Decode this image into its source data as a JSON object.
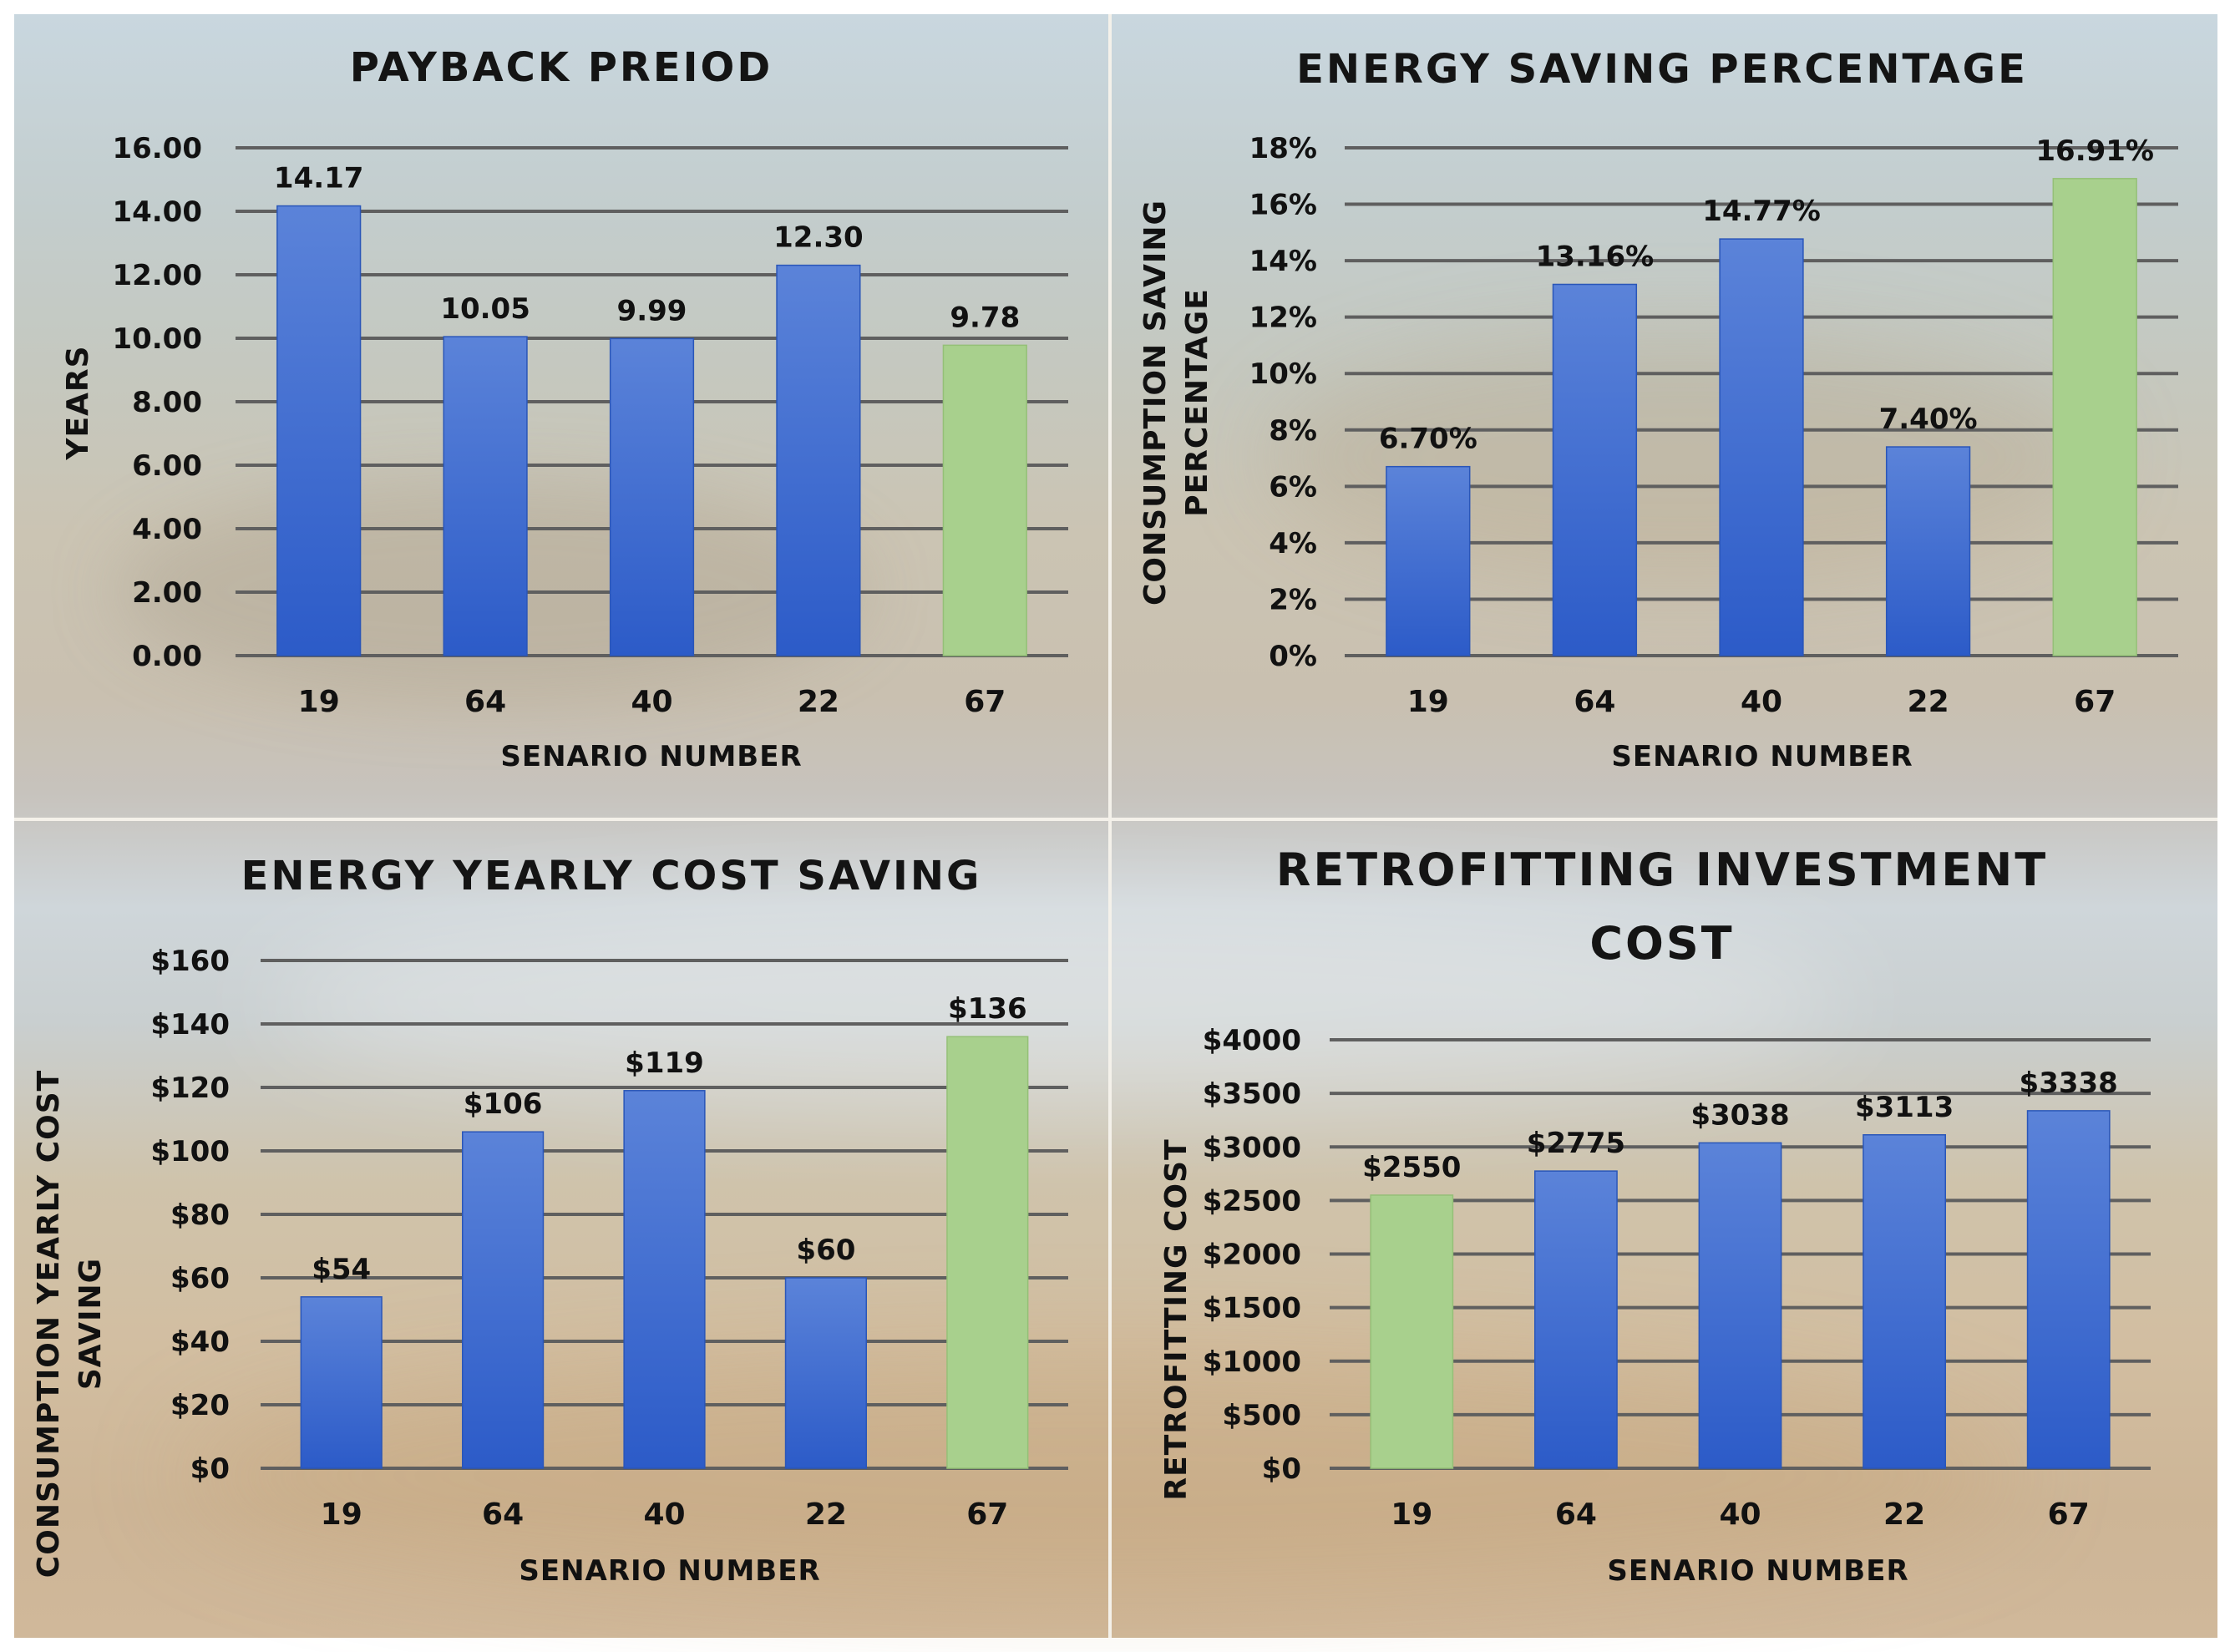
{
  "colors": {
    "bar_blue_top": "#5b83d9",
    "bar_blue_bottom": "#2c5bc8",
    "bar_green": "#a8d08d",
    "gridline": "#5f5f5f",
    "text": "#111111"
  },
  "chart_data": [
    {
      "id": "payback",
      "type": "bar",
      "title": [
        "PAYBACK PREIOD"
      ],
      "xlabel": "SENARIO NUMBER",
      "ylabel": [
        "YEARS"
      ],
      "categories": [
        "19",
        "64",
        "40",
        "22",
        "67"
      ],
      "values": [
        14.17,
        10.05,
        9.99,
        12.3,
        9.78
      ],
      "labels": [
        "14.17",
        "10.05",
        "9.99",
        "12.30",
        "9.78"
      ],
      "highlight_index": 4,
      "ylim": [
        0,
        16
      ],
      "yticks": [
        0,
        2,
        4,
        6,
        8,
        10,
        12,
        14,
        16
      ],
      "ytick_labels": [
        "0.00",
        "2.00",
        "4.00",
        "6.00",
        "8.00",
        "10.00",
        "12.00",
        "14.00",
        "16.00"
      ]
    },
    {
      "id": "energy-saving",
      "type": "bar",
      "title": [
        "ENERGY SAVING PERCENTAGE"
      ],
      "xlabel": "SENARIO NUMBER",
      "ylabel": [
        "CONSUMPTION SAVING",
        "PERCENTAGE"
      ],
      "categories": [
        "19",
        "64",
        "40",
        "22",
        "67"
      ],
      "values": [
        6.7,
        13.16,
        14.77,
        7.4,
        16.91
      ],
      "labels": [
        "6.70%",
        "13.16%",
        "14.77%",
        "7.40%",
        "16.91%"
      ],
      "highlight_index": 4,
      "ylim": [
        0,
        18
      ],
      "yticks": [
        0,
        2,
        4,
        6,
        8,
        10,
        12,
        14,
        16,
        18
      ],
      "ytick_labels": [
        "0%",
        "2%",
        "4%",
        "6%",
        "8%",
        "10%",
        "12%",
        "14%",
        "16%",
        "18%"
      ]
    },
    {
      "id": "cost-saving",
      "type": "bar",
      "title": [
        "ENERGY YEARLY COST SAVING"
      ],
      "xlabel": "SENARIO NUMBER",
      "ylabel": [
        "CONSUMPTION YEARLY COST",
        "SAVING"
      ],
      "categories": [
        "19",
        "64",
        "40",
        "22",
        "67"
      ],
      "values": [
        54,
        106,
        119,
        60,
        136
      ],
      "labels": [
        "$54",
        "$106",
        "$119",
        "$60",
        "$136"
      ],
      "highlight_index": 4,
      "ylim": [
        0,
        160
      ],
      "yticks": [
        0,
        20,
        40,
        60,
        80,
        100,
        120,
        140,
        160
      ],
      "ytick_labels": [
        "$0",
        "$20",
        "$40",
        "$60",
        "$80",
        "$100",
        "$120",
        "$140",
        "$160"
      ]
    },
    {
      "id": "investment",
      "type": "bar",
      "title": [
        "RETROFITTING INVESTMENT",
        "COST"
      ],
      "xlabel": "SENARIO NUMBER",
      "ylabel": [
        "RETROFITTING COST"
      ],
      "categories": [
        "19",
        "64",
        "40",
        "22",
        "67"
      ],
      "values": [
        2550,
        2775,
        3038,
        3113,
        3338
      ],
      "labels": [
        "$2550",
        "$2775",
        "$3038",
        "$3113",
        "$3338"
      ],
      "highlight_index": 0,
      "ylim": [
        0,
        4000
      ],
      "yticks": [
        0,
        500,
        1000,
        1500,
        2000,
        2500,
        3000,
        3500,
        4000
      ],
      "ytick_labels": [
        "$0",
        "$500",
        "$1000",
        "$1500",
        "$2000",
        "$2500",
        "$3000",
        "$3500",
        "$4000"
      ]
    }
  ]
}
